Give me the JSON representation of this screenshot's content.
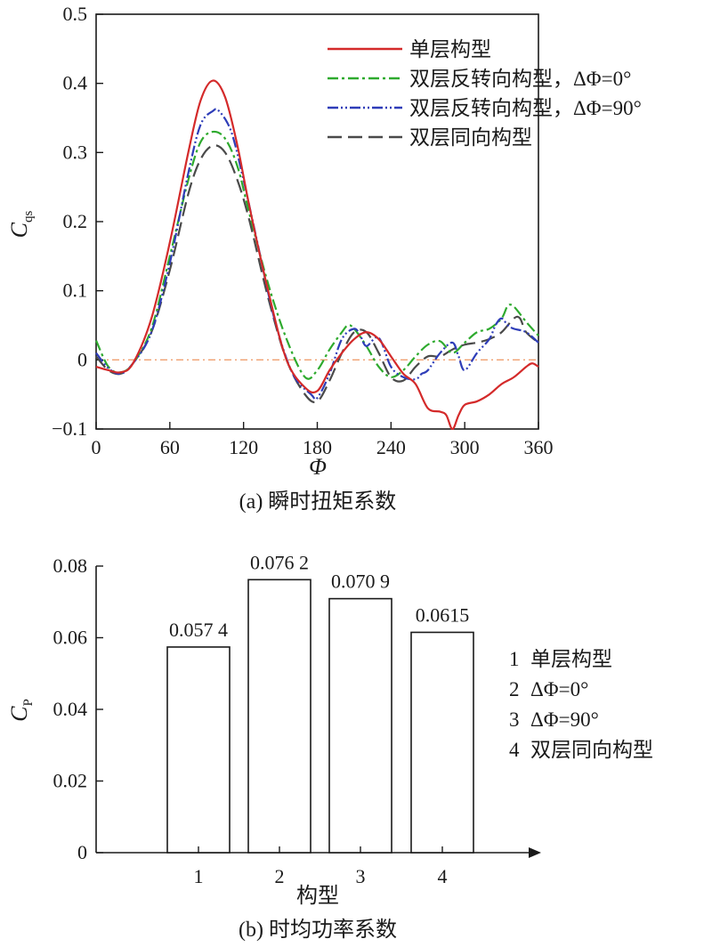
{
  "chart_data": [
    {
      "type": "line",
      "title": "",
      "caption": "(a) 瞬时扭矩系数",
      "xlabel": "Φ",
      "ylabel_main": "C",
      "ylabel_sub": "qs",
      "xlim": [
        0,
        360
      ],
      "ylim": [
        -0.1,
        0.5
      ],
      "xticks": [
        0,
        60,
        120,
        180,
        240,
        300,
        360
      ],
      "yticks": [
        -0.1,
        0,
        0.1,
        0.2,
        0.3,
        0.4,
        0.5
      ],
      "xtick_labels": [
        "0",
        "60",
        "120",
        "180",
        "240",
        "300",
        "360"
      ],
      "ytick_labels": [
        "−0.1",
        "0",
        "0.1",
        "0.2",
        "0.3",
        "0.4",
        "0.5"
      ],
      "reference_line": {
        "y": 0,
        "color": "#f0a070"
      },
      "legend_position": "top-right",
      "series": [
        {
          "name": "单层构型",
          "color": "#d42a2a",
          "style": "solid",
          "x": [
            0,
            10,
            20,
            30,
            45,
            60,
            75,
            85,
            95,
            105,
            115,
            125,
            140,
            155,
            170,
            180,
            190,
            200,
            210,
            220,
            230,
            240,
            250,
            260,
            270,
            280,
            285,
            290,
            295,
            300,
            310,
            320,
            330,
            340,
            350,
            355,
            360
          ],
          "y": [
            -0.01,
            -0.015,
            -0.018,
            -0.005,
            0.06,
            0.17,
            0.3,
            0.375,
            0.404,
            0.38,
            0.31,
            0.22,
            0.1,
            0.0,
            -0.04,
            -0.045,
            -0.015,
            0.01,
            0.03,
            0.04,
            0.03,
            0.005,
            -0.02,
            -0.035,
            -0.07,
            -0.075,
            -0.08,
            -0.1,
            -0.08,
            -0.065,
            -0.06,
            -0.05,
            -0.035,
            -0.025,
            -0.01,
            -0.005,
            -0.01
          ]
        },
        {
          "name": "双层反转向构型，ΔΦ=0°",
          "color": "#2eaa2e",
          "style": "dashdot",
          "x": [
            0,
            10,
            20,
            30,
            45,
            60,
            75,
            85,
            95,
            105,
            115,
            125,
            140,
            155,
            170,
            180,
            190,
            200,
            205,
            210,
            220,
            230,
            240,
            250,
            260,
            270,
            280,
            290,
            300,
            310,
            320,
            330,
            335,
            340,
            350,
            360
          ],
          "y": [
            0.028,
            -0.01,
            -0.018,
            -0.005,
            0.045,
            0.15,
            0.26,
            0.315,
            0.33,
            0.32,
            0.28,
            0.21,
            0.11,
            0.03,
            -0.025,
            -0.015,
            0.015,
            0.04,
            0.05,
            0.045,
            0.02,
            -0.01,
            -0.025,
            -0.015,
            0.005,
            0.022,
            0.027,
            0.01,
            0.025,
            0.04,
            0.045,
            0.06,
            0.078,
            0.077,
            0.055,
            0.035
          ]
        },
        {
          "name": "双层反转向构型，ΔΦ=90°",
          "color": "#2e3db8",
          "style": "dashdotdot",
          "x": [
            0,
            10,
            20,
            30,
            45,
            60,
            75,
            85,
            95,
            100,
            110,
            120,
            130,
            145,
            160,
            175,
            180,
            190,
            200,
            210,
            215,
            220,
            230,
            240,
            250,
            260,
            265,
            270,
            280,
            290,
            295,
            300,
            310,
            320,
            325,
            330,
            335,
            340,
            350,
            360
          ],
          "y": [
            0.01,
            -0.012,
            -0.02,
            -0.005,
            0.04,
            0.14,
            0.27,
            0.34,
            0.36,
            0.36,
            0.33,
            0.26,
            0.18,
            0.06,
            -0.02,
            -0.05,
            -0.055,
            -0.02,
            0.03,
            0.045,
            0.035,
            0.02,
            0.032,
            -0.01,
            -0.025,
            -0.028,
            -0.02,
            -0.015,
            0.01,
            0.025,
            0.005,
            -0.015,
            0.01,
            0.03,
            0.05,
            0.06,
            0.05,
            0.045,
            0.04,
            0.025
          ]
        },
        {
          "name": "双层同向构型",
          "color": "#4a4a4a",
          "style": "dashed",
          "x": [
            0,
            10,
            20,
            30,
            45,
            60,
            75,
            85,
            95,
            105,
            115,
            125,
            140,
            155,
            170,
            180,
            190,
            200,
            210,
            220,
            230,
            240,
            250,
            260,
            270,
            280,
            290,
            300,
            310,
            320,
            330,
            340,
            345,
            350,
            360
          ],
          "y": [
            0.005,
            -0.015,
            -0.02,
            -0.005,
            0.04,
            0.13,
            0.24,
            0.29,
            0.31,
            0.3,
            0.26,
            0.2,
            0.09,
            0.0,
            -0.05,
            -0.06,
            -0.03,
            0.01,
            0.04,
            0.04,
            0.01,
            -0.025,
            -0.03,
            -0.01,
            0.005,
            0.005,
            0.015,
            0.022,
            0.025,
            0.03,
            0.04,
            0.06,
            0.06,
            0.04,
            0.025
          ]
        }
      ]
    },
    {
      "type": "bar",
      "title": "",
      "caption": "(b) 时均功率系数",
      "xlabel": "构型",
      "ylabel_main": "C",
      "ylabel_sub": "P",
      "ylim": [
        0,
        0.08
      ],
      "yticks": [
        0,
        0.02,
        0.04,
        0.06,
        0.08
      ],
      "ytick_labels": [
        "0",
        "0.02",
        "0.04",
        "0.06",
        "0.08"
      ],
      "categories": [
        "1",
        "2",
        "3",
        "4"
      ],
      "values": [
        0.0574,
        0.0762,
        0.0709,
        0.0615
      ],
      "value_labels": [
        "0.057 4",
        "0.076 2",
        "0.070 9",
        "0.0615"
      ],
      "legend_position": "right",
      "legend": [
        {
          "key": "1",
          "label": "单层构型"
        },
        {
          "key": "2",
          "label": "ΔΦ=0°"
        },
        {
          "key": "3",
          "label": "ΔΦ=90°"
        },
        {
          "key": "4",
          "label": "双层同向构型"
        }
      ]
    }
  ]
}
